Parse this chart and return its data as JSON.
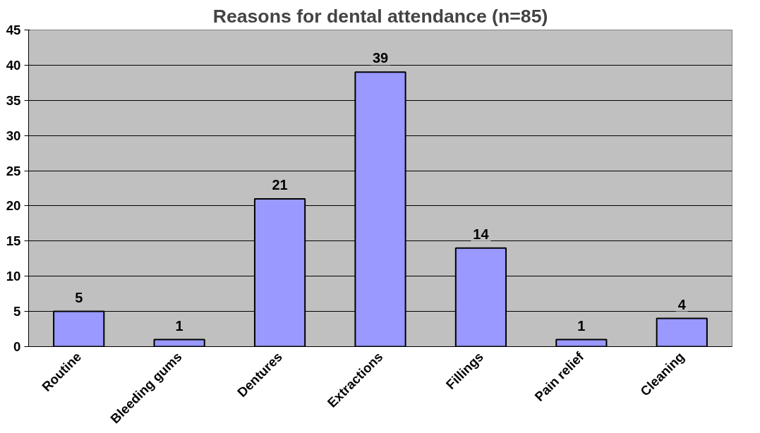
{
  "chart_data": {
    "type": "bar",
    "title": "Reasons for dental attendance (n=85)",
    "categories": [
      "Routine",
      "Bleeding gums",
      "Dentures",
      "Extractions",
      "Fillings",
      "Pain relief",
      "Cleaning"
    ],
    "values": [
      5,
      1,
      21,
      39,
      14,
      1,
      4
    ],
    "color": "#9999ff",
    "ylim": [
      0,
      45
    ],
    "yticks": [
      0,
      5,
      10,
      15,
      20,
      25,
      30,
      35,
      40,
      45
    ],
    "grid": "y",
    "data_labels": true
  }
}
